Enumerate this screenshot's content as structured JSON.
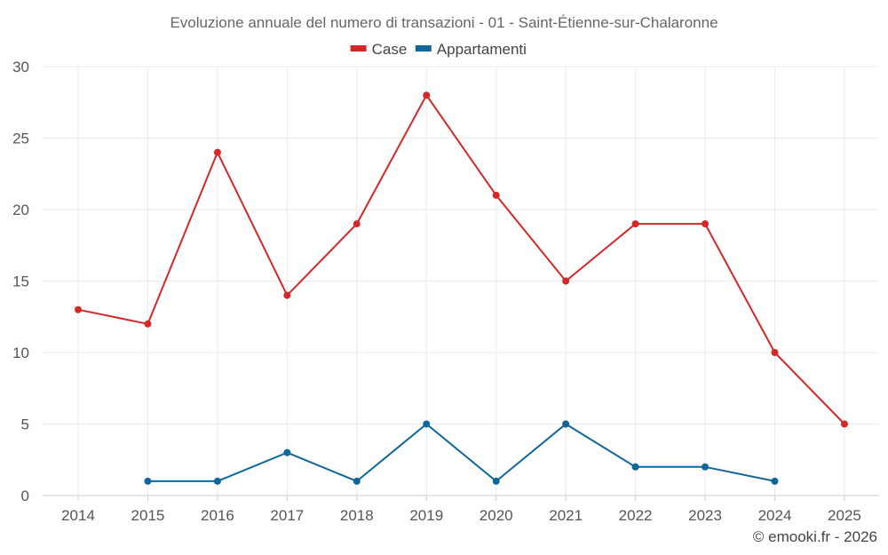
{
  "chart_data": {
    "type": "line",
    "title": "Evoluzione annuale del numero di transazioni - 01 - Saint-Étienne-sur-Chalaronne",
    "categories": [
      "2014",
      "2015",
      "2016",
      "2017",
      "2018",
      "2019",
      "2020",
      "2021",
      "2022",
      "2023",
      "2024",
      "2025"
    ],
    "series": [
      {
        "name": "Case",
        "color": "#d62728",
        "values": [
          13,
          12,
          24,
          14,
          19,
          28,
          21,
          15,
          19,
          19,
          10,
          5
        ]
      },
      {
        "name": "Appartamenti",
        "color": "#0e6699",
        "values": [
          null,
          1,
          1,
          3,
          1,
          5,
          1,
          5,
          2,
          2,
          1,
          null
        ]
      }
    ],
    "xlabel": "",
    "ylabel": "",
    "ylim": [
      0,
      30
    ],
    "yticks": [
      0,
      5,
      10,
      15,
      20,
      25,
      30
    ],
    "grid": true,
    "legend_position": "top-center",
    "credit": "© emooki.fr - 2026"
  }
}
